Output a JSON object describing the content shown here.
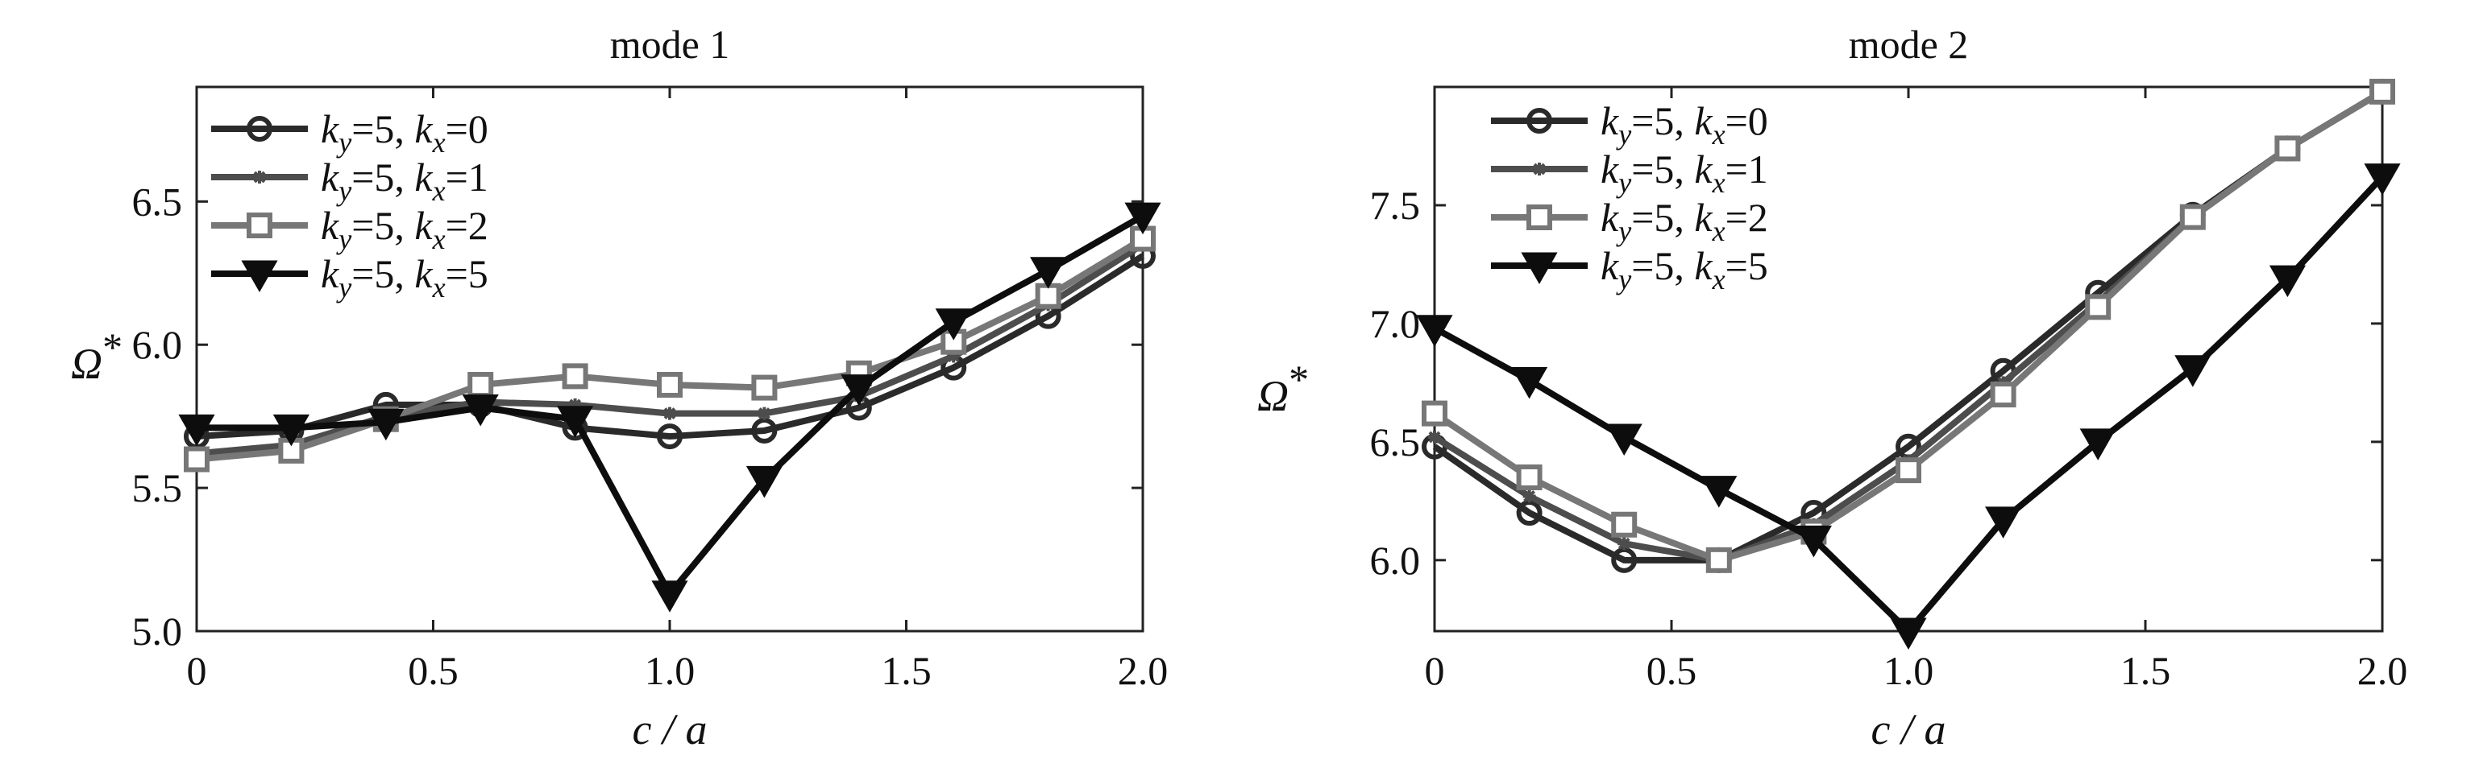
{
  "chart_data": [
    {
      "type": "line",
      "title": "mode 1",
      "xlabel": "c / a",
      "ylabel": "Ω*",
      "xlim": [
        0,
        2.0
      ],
      "ylim": [
        5.0,
        6.9
      ],
      "xticks": [
        "0",
        "0.5",
        "1.0",
        "1.5",
        "2.0"
      ],
      "yticks": [
        "5.0",
        "5.5",
        "6.0",
        "6.5"
      ],
      "x": [
        0,
        0.2,
        0.4,
        0.6,
        0.8,
        1.0,
        1.2,
        1.4,
        1.6,
        1.8,
        2.0
      ],
      "legend_position": "top-left",
      "series": [
        {
          "name": "ky=5, kx=0",
          "values": [
            5.68,
            5.7,
            5.79,
            5.79,
            5.71,
            5.68,
            5.7,
            5.78,
            5.92,
            6.1,
            6.31
          ]
        },
        {
          "name": "ky=5, kx=1",
          "values": [
            5.62,
            5.65,
            5.75,
            5.8,
            5.79,
            5.76,
            5.76,
            5.82,
            5.96,
            6.14,
            6.35
          ]
        },
        {
          "name": "ky=5, kx=2",
          "values": [
            5.6,
            5.63,
            5.74,
            5.86,
            5.89,
            5.86,
            5.85,
            5.9,
            6.01,
            6.17,
            6.37
          ]
        },
        {
          "name": "ky=5, kx=5",
          "values": [
            5.71,
            5.71,
            5.73,
            5.78,
            5.74,
            5.13,
            5.53,
            5.85,
            6.08,
            6.26,
            6.45
          ]
        }
      ]
    },
    {
      "type": "line",
      "title": "mode 2",
      "xlabel": "c / a",
      "ylabel": "Ω*",
      "xlim": [
        0,
        2.0
      ],
      "ylim": [
        5.7,
        8.0
      ],
      "xticks": [
        "0",
        "0.5",
        "1.0",
        "1.5",
        "2.0"
      ],
      "yticks": [
        "6.0",
        "6.5",
        "7.0",
        "7.5"
      ],
      "x": [
        0,
        0.2,
        0.4,
        0.6,
        0.8,
        1.0,
        1.2,
        1.4,
        1.6,
        1.8,
        2.0
      ],
      "legend_position": "top-left",
      "series": [
        {
          "name": "ky=5, kx=0",
          "values": [
            6.48,
            6.2,
            6.0,
            6.0,
            6.2,
            6.48,
            6.8,
            7.13,
            7.46,
            7.74,
            7.98
          ]
        },
        {
          "name": "ky=5, kx=1",
          "values": [
            6.52,
            6.27,
            6.07,
            6.0,
            6.15,
            6.42,
            6.75,
            7.09,
            7.45,
            7.74,
            7.98
          ]
        },
        {
          "name": "ky=5, kx=2",
          "values": [
            6.62,
            6.35,
            6.15,
            6.0,
            6.12,
            6.38,
            6.7,
            7.07,
            7.45,
            7.74,
            7.98
          ]
        },
        {
          "name": "ky=5, kx=5",
          "values": [
            6.98,
            6.76,
            6.52,
            6.3,
            6.09,
            5.7,
            6.17,
            6.5,
            6.81,
            7.19,
            7.62
          ]
        }
      ]
    }
  ]
}
